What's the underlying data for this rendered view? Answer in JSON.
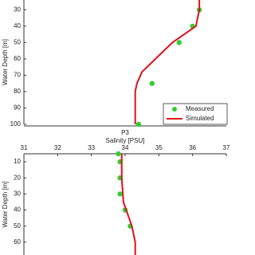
{
  "chart_data": [
    {
      "type": "scatter",
      "ylabel": "Water Depth [m]",
      "xlim": [
        31,
        37
      ],
      "ylim": [
        24,
        100
      ],
      "yticks": [
        30,
        40,
        50,
        60,
        70,
        80,
        90,
        100
      ],
      "legend": "lower right",
      "series": [
        {
          "name": "Measured",
          "mode": "markers",
          "color": "#33cc33",
          "x": [
            36.2,
            36.0,
            35.6,
            34.8,
            34.4
          ],
          "values": [
            30,
            40,
            50,
            75,
            100
          ]
        },
        {
          "name": "Simulated",
          "mode": "line",
          "color": "#e0101a",
          "x": [
            36.2,
            36.2,
            36.1,
            35.4,
            34.9,
            34.5,
            34.35,
            34.3,
            34.3
          ],
          "values": [
            24,
            30,
            40,
            50,
            60,
            68,
            75,
            80,
            100
          ]
        }
      ]
    },
    {
      "type": "scatter",
      "title": "P3",
      "xlabel": "Salinity [PSU]",
      "ylabel": "Water Depth [m]",
      "xlim": [
        31,
        37
      ],
      "xticks": [
        31,
        32,
        33,
        34,
        35,
        36,
        37
      ],
      "ylim": [
        5,
        68
      ],
      "yticks": [
        10,
        20,
        30,
        40,
        50,
        60
      ],
      "series": [
        {
          "mode": "markers",
          "color": "#33cc33",
          "x": [
            33.8,
            33.85,
            33.85,
            33.85,
            34.0,
            34.15
          ],
          "values": [
            5,
            10,
            20,
            30,
            40,
            50
          ]
        },
        {
          "mode": "line",
          "color": "#e0101a",
          "x": [
            33.9,
            33.9,
            33.95,
            34.2,
            34.3,
            34.3
          ],
          "values": [
            5,
            20,
            35,
            50,
            60,
            68
          ]
        }
      ]
    }
  ]
}
